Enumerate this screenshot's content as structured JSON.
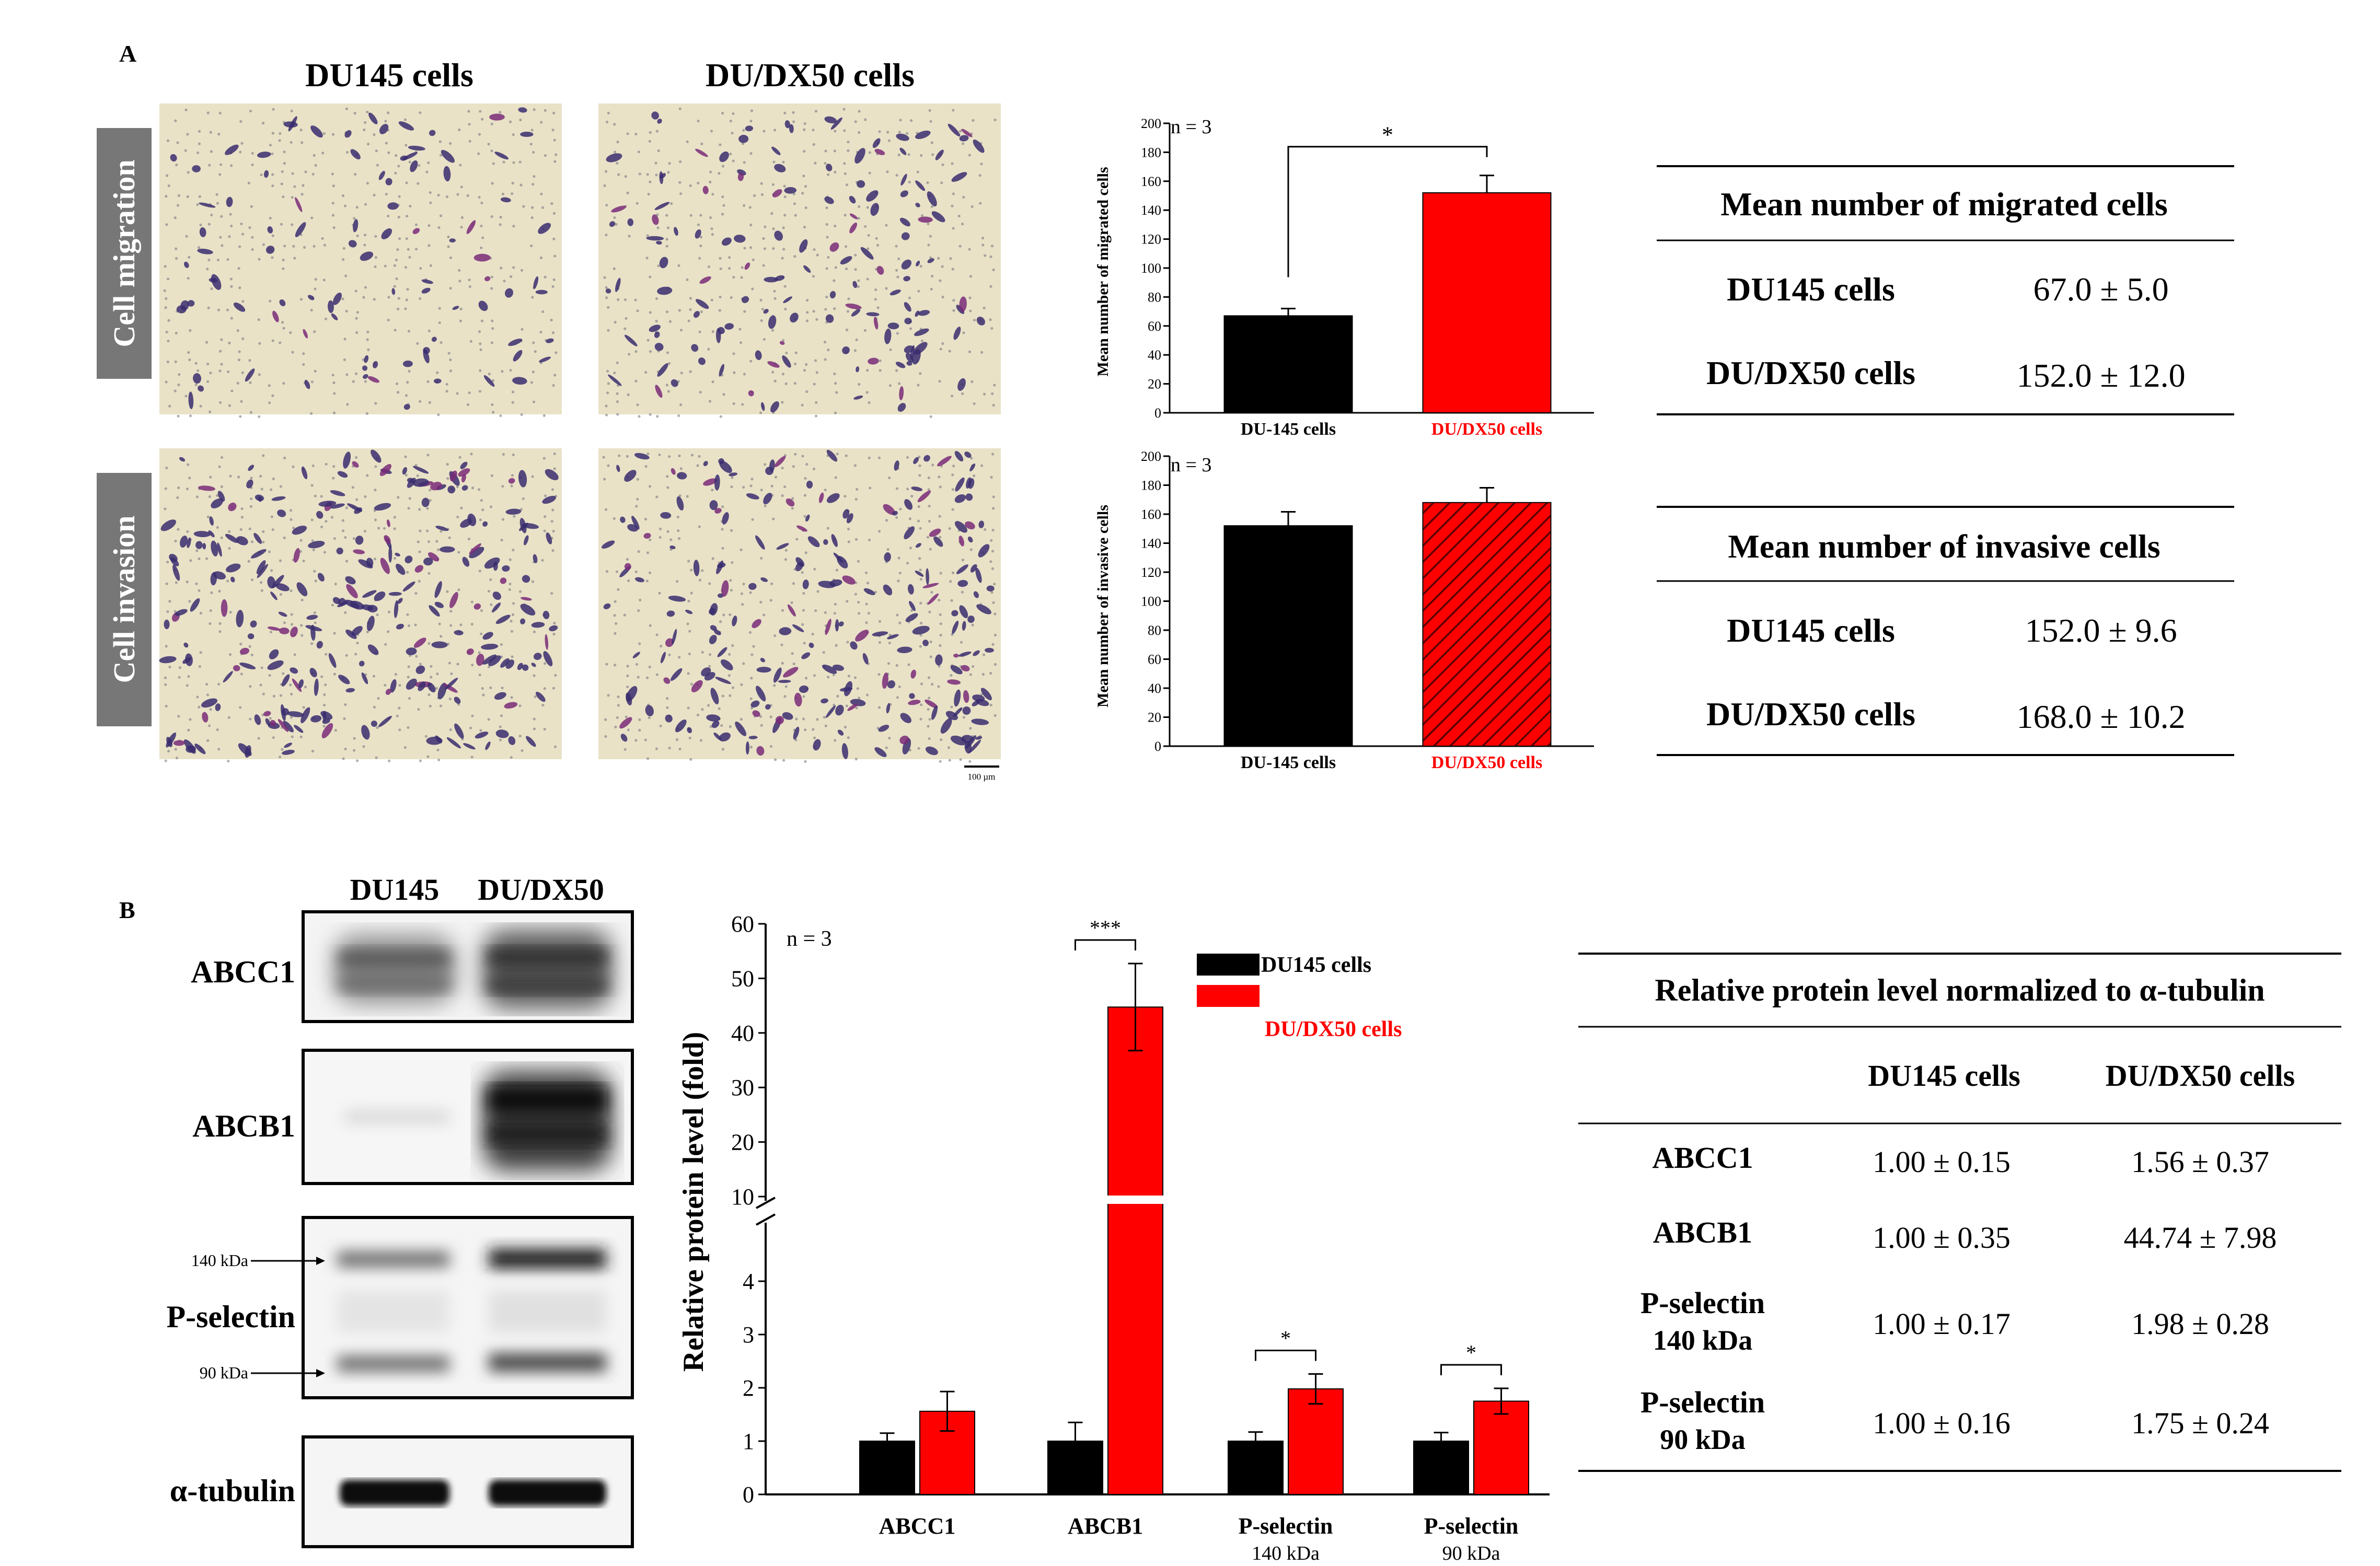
{
  "panel_a": {
    "label": "A",
    "col_headers": [
      "DU145 cells",
      "DU/DX50 cells"
    ],
    "row_labels": [
      "Cell migration",
      "Cell invasion"
    ],
    "scale_bar_label": "100 µm",
    "migration_table": {
      "title": "Mean number of migrated cells",
      "rows": [
        {
          "name": "DU145 cells",
          "value": "67.0 ± 5.0"
        },
        {
          "name": "DU/DX50 cells",
          "value": "152.0 ± 12.0"
        }
      ]
    },
    "invasion_table": {
      "title": "Mean number of invasive cells",
      "rows": [
        {
          "name": "DU145 cells",
          "value": "152.0 ± 9.6"
        },
        {
          "name": "DU/DX50 cells",
          "value": "168.0 ± 10.2"
        }
      ]
    }
  },
  "panel_b": {
    "label": "B",
    "blot_col_headers": [
      "DU145",
      "DU/DX50"
    ],
    "blot_rows": [
      "ABCC1",
      "ABCB1",
      "P-selectin",
      "α-tubulin"
    ],
    "marker_labels": [
      "140 kDa",
      "90 kDa"
    ],
    "protein_table": {
      "title": "Relative protein level normalized to α-tubulin",
      "col_headers": [
        "DU145 cells",
        "DU/DX50 cells"
      ],
      "rows": [
        {
          "name": "ABCC1",
          "sub": "",
          "du145": "1.00 ± 0.15",
          "dudx50": "1.56 ± 0.37"
        },
        {
          "name": "ABCB1",
          "sub": "",
          "du145": "1.00 ± 0.35",
          "dudx50": "44.74 ± 7.98"
        },
        {
          "name": "P-selectin",
          "sub": "140 kDa",
          "du145": "1.00 ± 0.17",
          "dudx50": "1.98 ± 0.28"
        },
        {
          "name": "P-selectin",
          "sub": "90 kDa",
          "du145": "1.00 ± 0.16",
          "dudx50": "1.75 ± 0.24"
        }
      ]
    }
  },
  "colors": {
    "du145": "#000000",
    "dudx50": "#ff0000",
    "membrane": "#e9e2c7"
  },
  "chart_data": [
    {
      "type": "bar",
      "ylabel": "Mean number of migrated cells",
      "annotation": "n = 3",
      "categories": [
        "DU-145 cells",
        "DU/DX50 cells"
      ],
      "values": [
        67,
        152
      ],
      "errors": [
        5,
        12
      ],
      "ylim": [
        0,
        200
      ],
      "yticks": [
        0,
        20,
        40,
        60,
        80,
        100,
        120,
        140,
        160,
        180,
        200
      ],
      "significance": "*"
    },
    {
      "type": "bar",
      "ylabel": "Mean number of invasive cells",
      "annotation": "n = 3",
      "categories": [
        "DU-145 cells",
        "DU/DX50 cells"
      ],
      "values": [
        152,
        168
      ],
      "errors": [
        9.6,
        10.2
      ],
      "ylim": [
        0,
        200
      ],
      "yticks": [
        0,
        20,
        40,
        60,
        80,
        100,
        120,
        140,
        160,
        180,
        200
      ],
      "hatched": "DU/DX50 cells"
    },
    {
      "type": "bar",
      "ylabel": "Relative protein level (fold)",
      "annotation": "n = 3",
      "categories": [
        "ABCC1",
        "ABCB1",
        "P-selectin",
        "P-selectin"
      ],
      "category_sublabels": [
        "",
        "",
        "140 kDa",
        "90 kDa"
      ],
      "series": [
        {
          "name": "DU145 cells",
          "values": [
            1.0,
            1.0,
            1.0,
            1.0
          ],
          "errors": [
            0.15,
            0.35,
            0.17,
            0.16
          ]
        },
        {
          "name": "DU/DX50 cells",
          "values": [
            1.56,
            44.74,
            1.98,
            1.75
          ],
          "errors": [
            0.37,
            7.98,
            0.28,
            0.24
          ]
        }
      ],
      "axis_break": [
        5,
        10
      ],
      "yticks_lower": [
        0,
        1,
        2,
        3,
        4
      ],
      "yticks_upper": [
        10,
        20,
        30,
        40,
        50,
        60
      ],
      "significance": [
        "",
        "***",
        "*",
        "*"
      ]
    }
  ]
}
